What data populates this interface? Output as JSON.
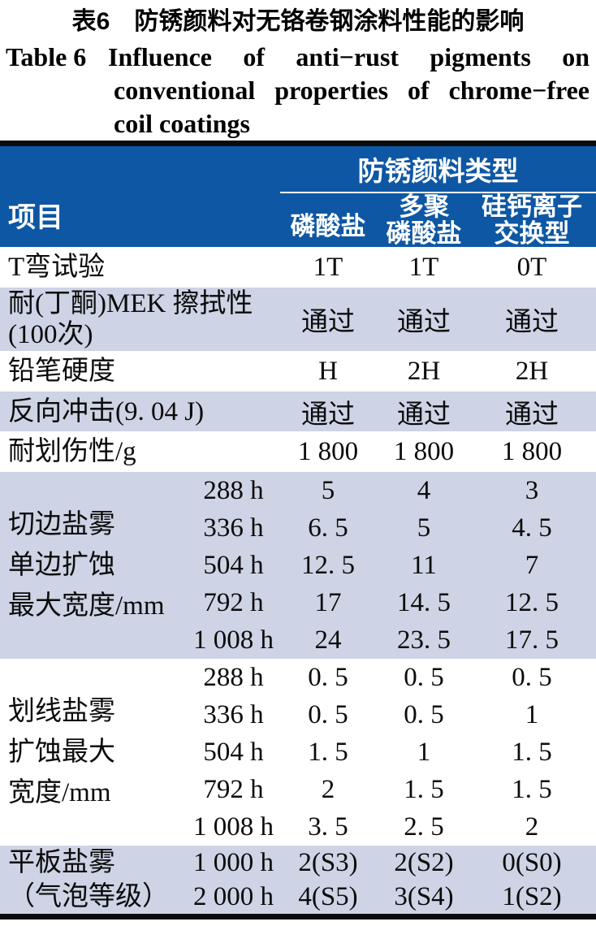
{
  "colors": {
    "header_bg": "#0E57A4",
    "header_fg": "#FFFFFF",
    "stripe_bg": "#CED3E5",
    "rule": "#0B0B0B"
  },
  "caption": {
    "zh": "表6　防锈颜料对无铬卷钢涂料性能的影响",
    "en_label": "Table 6",
    "en_line1": "Influence of anti−rust pigments on",
    "en_line2": "conventional properties of chrome−free",
    "en_line3": "coil coatings"
  },
  "table": {
    "item_header": "项目",
    "group_header": "防锈颜料类型",
    "col_headers": [
      "磷酸盐",
      "多聚\n磷酸盐",
      "硅钙离子\n交换型"
    ],
    "simple_rows": [
      {
        "label": "T弯试验",
        "values": [
          "1T",
          "1T",
          "0T"
        ]
      },
      {
        "label": "耐(丁酮)MEK 擦拭性\n(100次)",
        "values": [
          "通过",
          "通过",
          "通过"
        ]
      },
      {
        "label": "铅笔硬度",
        "values": [
          "H",
          "2H",
          "2H"
        ]
      },
      {
        "label": "反向冲击(9. 04 J)",
        "values": [
          "通过",
          "通过",
          "通过"
        ]
      },
      {
        "label": "耐划伤性/g",
        "values": [
          "1 800",
          "1 800",
          "1 800"
        ]
      }
    ],
    "groups": [
      {
        "label": "切边盐雾\n单边扩蚀\n最大宽度/mm",
        "subrows": [
          {
            "time": "288 h",
            "values": [
              "5",
              "4",
              "3"
            ]
          },
          {
            "time": "336 h",
            "values": [
              "6. 5",
              "5",
              "4. 5"
            ]
          },
          {
            "time": "504 h",
            "values": [
              "12. 5",
              "11",
              "7"
            ]
          },
          {
            "time": "792 h",
            "values": [
              "17",
              "14. 5",
              "12. 5"
            ]
          },
          {
            "time": "1 008 h",
            "values": [
              "24",
              "23. 5",
              "17. 5"
            ]
          }
        ]
      },
      {
        "label": "划线盐雾\n扩蚀最大\n宽度/mm",
        "subrows": [
          {
            "time": "288 h",
            "values": [
              "0. 5",
              "0. 5",
              "0. 5"
            ]
          },
          {
            "time": "336 h",
            "values": [
              "0. 5",
              "0. 5",
              "1"
            ]
          },
          {
            "time": "504 h",
            "values": [
              "1. 5",
              "1",
              "1. 5"
            ]
          },
          {
            "time": "792 h",
            "values": [
              "2",
              "1. 5",
              "1. 5"
            ]
          },
          {
            "time": "1 008 h",
            "values": [
              "3. 5",
              "2. 5",
              "2"
            ]
          }
        ]
      },
      {
        "label": "平板盐雾\n（气泡等级）",
        "subrows": [
          {
            "time": "1 000 h",
            "values": [
              "2(S3)",
              "2(S2)",
              "0(S0)"
            ]
          },
          {
            "time": "2 000 h",
            "values": [
              "4(S5)",
              "3(S4)",
              "1(S2)"
            ]
          }
        ]
      }
    ]
  }
}
